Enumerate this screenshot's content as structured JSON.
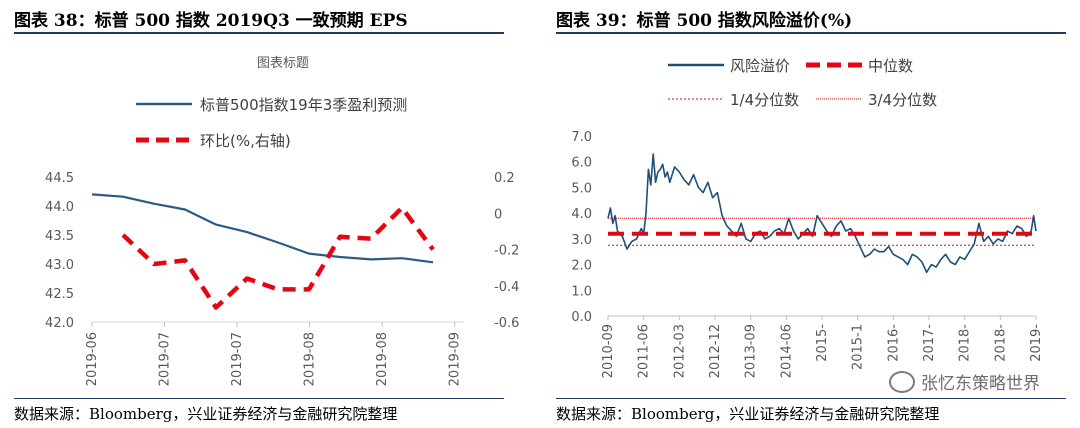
{
  "left": {
    "panel_title": "图表 38：标普 500 指数 2019Q3 一致预期 EPS",
    "source": "数据来源：Bloomberg，兴业证券经济与金融研究院整理",
    "chart_data": {
      "type": "line",
      "title": "图表标题",
      "x": [
        "2019-06",
        "2019-06",
        "2019-06",
        "2019-07",
        "2019-07",
        "2019-07",
        "2019-07",
        "2019-08",
        "2019-08",
        "2019-08",
        "2019-08",
        "2019-09",
        "2019-09"
      ],
      "x_tick_labels": [
        "2019-06",
        "2019-07",
        "2019-07",
        "2019-08",
        "2019-08",
        "2019-09"
      ],
      "series": [
        {
          "name": "标普500指数19年3季盈利预测",
          "axis": "left",
          "color": "#2e5a88",
          "values": [
            44.2,
            44.16,
            44.04,
            43.94,
            43.68,
            43.55,
            43.37,
            43.18,
            43.12,
            43.08,
            43.1,
            43.03,
            null
          ]
        },
        {
          "name": "环比(%,右轴)",
          "axis": "right",
          "color": "#e30613",
          "dash": true,
          "values": [
            null,
            -0.12,
            -0.28,
            -0.26,
            -0.52,
            -0.36,
            -0.42,
            -0.42,
            -0.13,
            -0.14,
            0.03,
            -0.2,
            null
          ]
        }
      ],
      "ylim_left": [
        42.0,
        44.5
      ],
      "yticks_left": [
        "44.5",
        "44.0",
        "43.5",
        "43.0",
        "42.5",
        "42.0"
      ],
      "ylim_right": [
        -0.6,
        0.2
      ],
      "yticks_right": [
        "0.2",
        "0",
        "-0.2",
        "-0.4",
        "-0.6"
      ],
      "legend_placement": "top"
    }
  },
  "right": {
    "panel_title": "图表 39：标普 500 指数风险溢价(%)",
    "source": "数据来源：Bloomberg，兴业证券经济与金融研究院整理",
    "chart_data": {
      "type": "line",
      "title": "",
      "x_tick_labels": [
        "2010-09",
        "2011-06",
        "2012-03",
        "2012-12",
        "2013-09",
        "2014-06",
        "2015-",
        "2015-1",
        "2016-",
        "2017-",
        "2018-",
        "2018-",
        "2019-"
      ],
      "x_range": [
        "2010-09",
        "2019-09"
      ],
      "ylim": [
        0.0,
        7.0
      ],
      "yticks": [
        "7.0",
        "6.0",
        "5.0",
        "4.0",
        "3.0",
        "2.0",
        "1.0",
        "0.0"
      ],
      "series": [
        {
          "name": "风险溢价",
          "color": "#1f4e79",
          "x": [
            0,
            0.05,
            0.1,
            0.15,
            0.2,
            0.3,
            0.4,
            0.5,
            0.6,
            0.7,
            0.75,
            0.8,
            0.85,
            0.9,
            0.95,
            1.0,
            1.05,
            1.1,
            1.15,
            1.2,
            1.25,
            1.3,
            1.4,
            1.5,
            1.6,
            1.7,
            1.8,
            1.9,
            2.0,
            2.1,
            2.2,
            2.3,
            2.4,
            2.5,
            2.6,
            2.7,
            2.8,
            2.9,
            3.0,
            3.1,
            3.2,
            3.3,
            3.4,
            3.5,
            3.6,
            3.7,
            3.8,
            3.9,
            4.0,
            4.1,
            4.2,
            4.3,
            4.4,
            4.5,
            4.6,
            4.7,
            4.8,
            4.9,
            5.0,
            5.1,
            5.2,
            5.3,
            5.4,
            5.5,
            5.6,
            5.7,
            5.8,
            5.9,
            6.0,
            6.1,
            6.2,
            6.3,
            6.4,
            6.5,
            6.6,
            6.7,
            6.8,
            6.9,
            7.0,
            7.1,
            7.2,
            7.3,
            7.4,
            7.5,
            7.6,
            7.7,
            7.8,
            7.9,
            8.0,
            8.1,
            8.2,
            8.3,
            8.4,
            8.5,
            8.6,
            8.7,
            8.8,
            8.9,
            8.95,
            9.0
          ],
          "values": [
            3.8,
            4.2,
            3.6,
            3.9,
            3.3,
            3.1,
            2.6,
            2.9,
            3.0,
            3.4,
            3.2,
            4.0,
            5.7,
            5.1,
            6.3,
            5.2,
            5.6,
            5.7,
            5.9,
            5.4,
            5.6,
            5.2,
            5.8,
            5.6,
            5.3,
            5.1,
            5.5,
            5.0,
            4.8,
            5.2,
            4.6,
            4.8,
            3.9,
            3.5,
            3.3,
            3.1,
            3.6,
            3.0,
            2.9,
            3.2,
            3.3,
            3.0,
            3.1,
            3.3,
            3.4,
            3.2,
            3.8,
            3.3,
            3.0,
            3.2,
            3.4,
            3.1,
            3.9,
            3.6,
            3.3,
            3.1,
            3.5,
            3.7,
            3.3,
            3.4,
            3.1,
            2.7,
            2.3,
            2.4,
            2.6,
            2.5,
            2.5,
            2.7,
            2.4,
            2.3,
            2.2,
            2.0,
            2.4,
            2.3,
            2.1,
            1.7,
            2.0,
            1.9,
            2.2,
            2.4,
            2.1,
            2.0,
            2.3,
            2.2,
            2.5,
            2.8,
            3.6,
            2.9,
            3.1,
            2.8,
            3.0,
            2.9,
            3.3,
            3.2,
            3.5,
            3.4,
            3.1,
            3.3,
            3.9,
            3.3
          ]
        },
        {
          "name": "中位数",
          "value": 3.2,
          "color": "#e30613"
        },
        {
          "name": "1/4分位数",
          "value": 2.75,
          "color": "#e30613"
        },
        {
          "name": "3/4分位数",
          "value": 3.8,
          "color": "#e30613"
        }
      ],
      "legend_placement": "top"
    }
  },
  "watermark": "张忆东策略世界"
}
